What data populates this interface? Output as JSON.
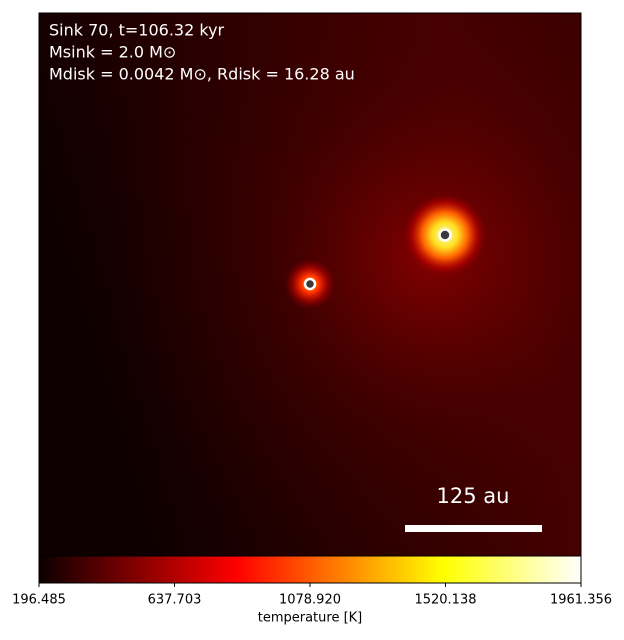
{
  "chart_data": {
    "type": "image",
    "annotations": [
      "Sink 70, t=106.32 kyr",
      "Msink = 2.0 M⊙",
      "Mdisk = 0.0042 M⊙, Rdisk = 16.28 au"
    ],
    "scale_bar_label": "125 au",
    "colorbar": {
      "colormap": "hot",
      "label": "temperature [K]",
      "lim": [
        196.485,
        1961.356
      ],
      "ticks": [
        196.485,
        637.703,
        {
          "value": 1078.92,
          "label": "1078.920"
        },
        1520.138,
        1961.356
      ]
    }
  }
}
